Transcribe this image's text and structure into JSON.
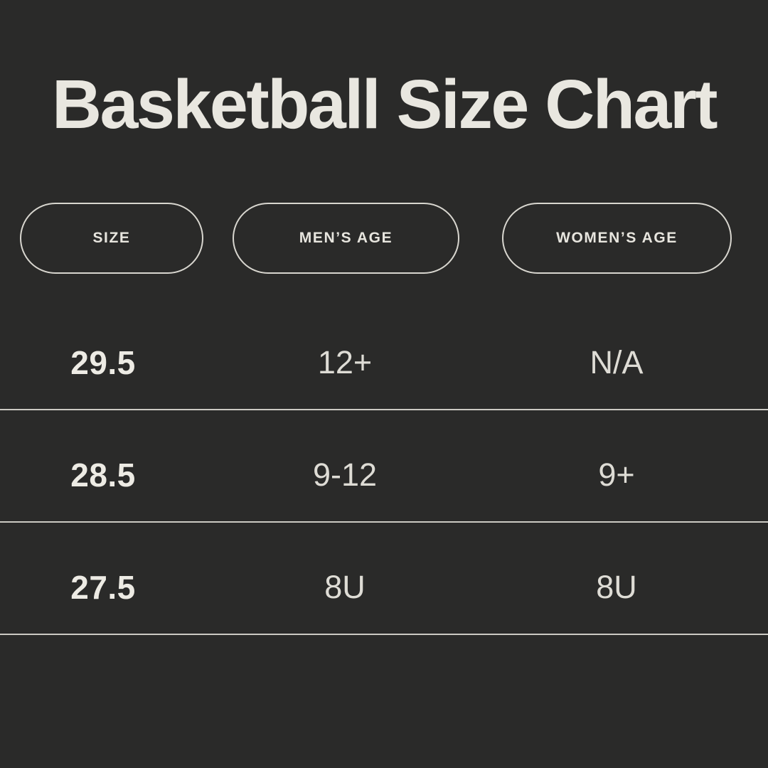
{
  "meta": {
    "background_color": "#2a2a29",
    "title_color": "#e9e7e0",
    "pill_border_color": "#d8d6cf",
    "divider_color": "#cccac3",
    "value_text_color": "#dedcd5"
  },
  "title": "Basketball Size Chart",
  "columns": [
    {
      "id": "size",
      "label": "SIZE"
    },
    {
      "id": "mens-age",
      "label": "MEN’S AGE"
    },
    {
      "id": "womens-age",
      "label": "WOMEN’S AGE"
    }
  ],
  "rows": [
    {
      "size": "29.5",
      "mens_age": "12+",
      "womens_age": "N/A"
    },
    {
      "size": "28.5",
      "mens_age": "9-12",
      "womens_age": "9+"
    },
    {
      "size": "27.5",
      "mens_age": "8U",
      "womens_age": "8U"
    }
  ],
  "chart_data": {
    "type": "table",
    "title": "Basketball Size Chart",
    "columns": [
      "SIZE",
      "MEN’S AGE",
      "WOMEN’S AGE"
    ],
    "rows": [
      [
        "29.5",
        "12+",
        "N/A"
      ],
      [
        "28.5",
        "9-12",
        "9+"
      ],
      [
        "27.5",
        "8U",
        "8U"
      ]
    ]
  }
}
